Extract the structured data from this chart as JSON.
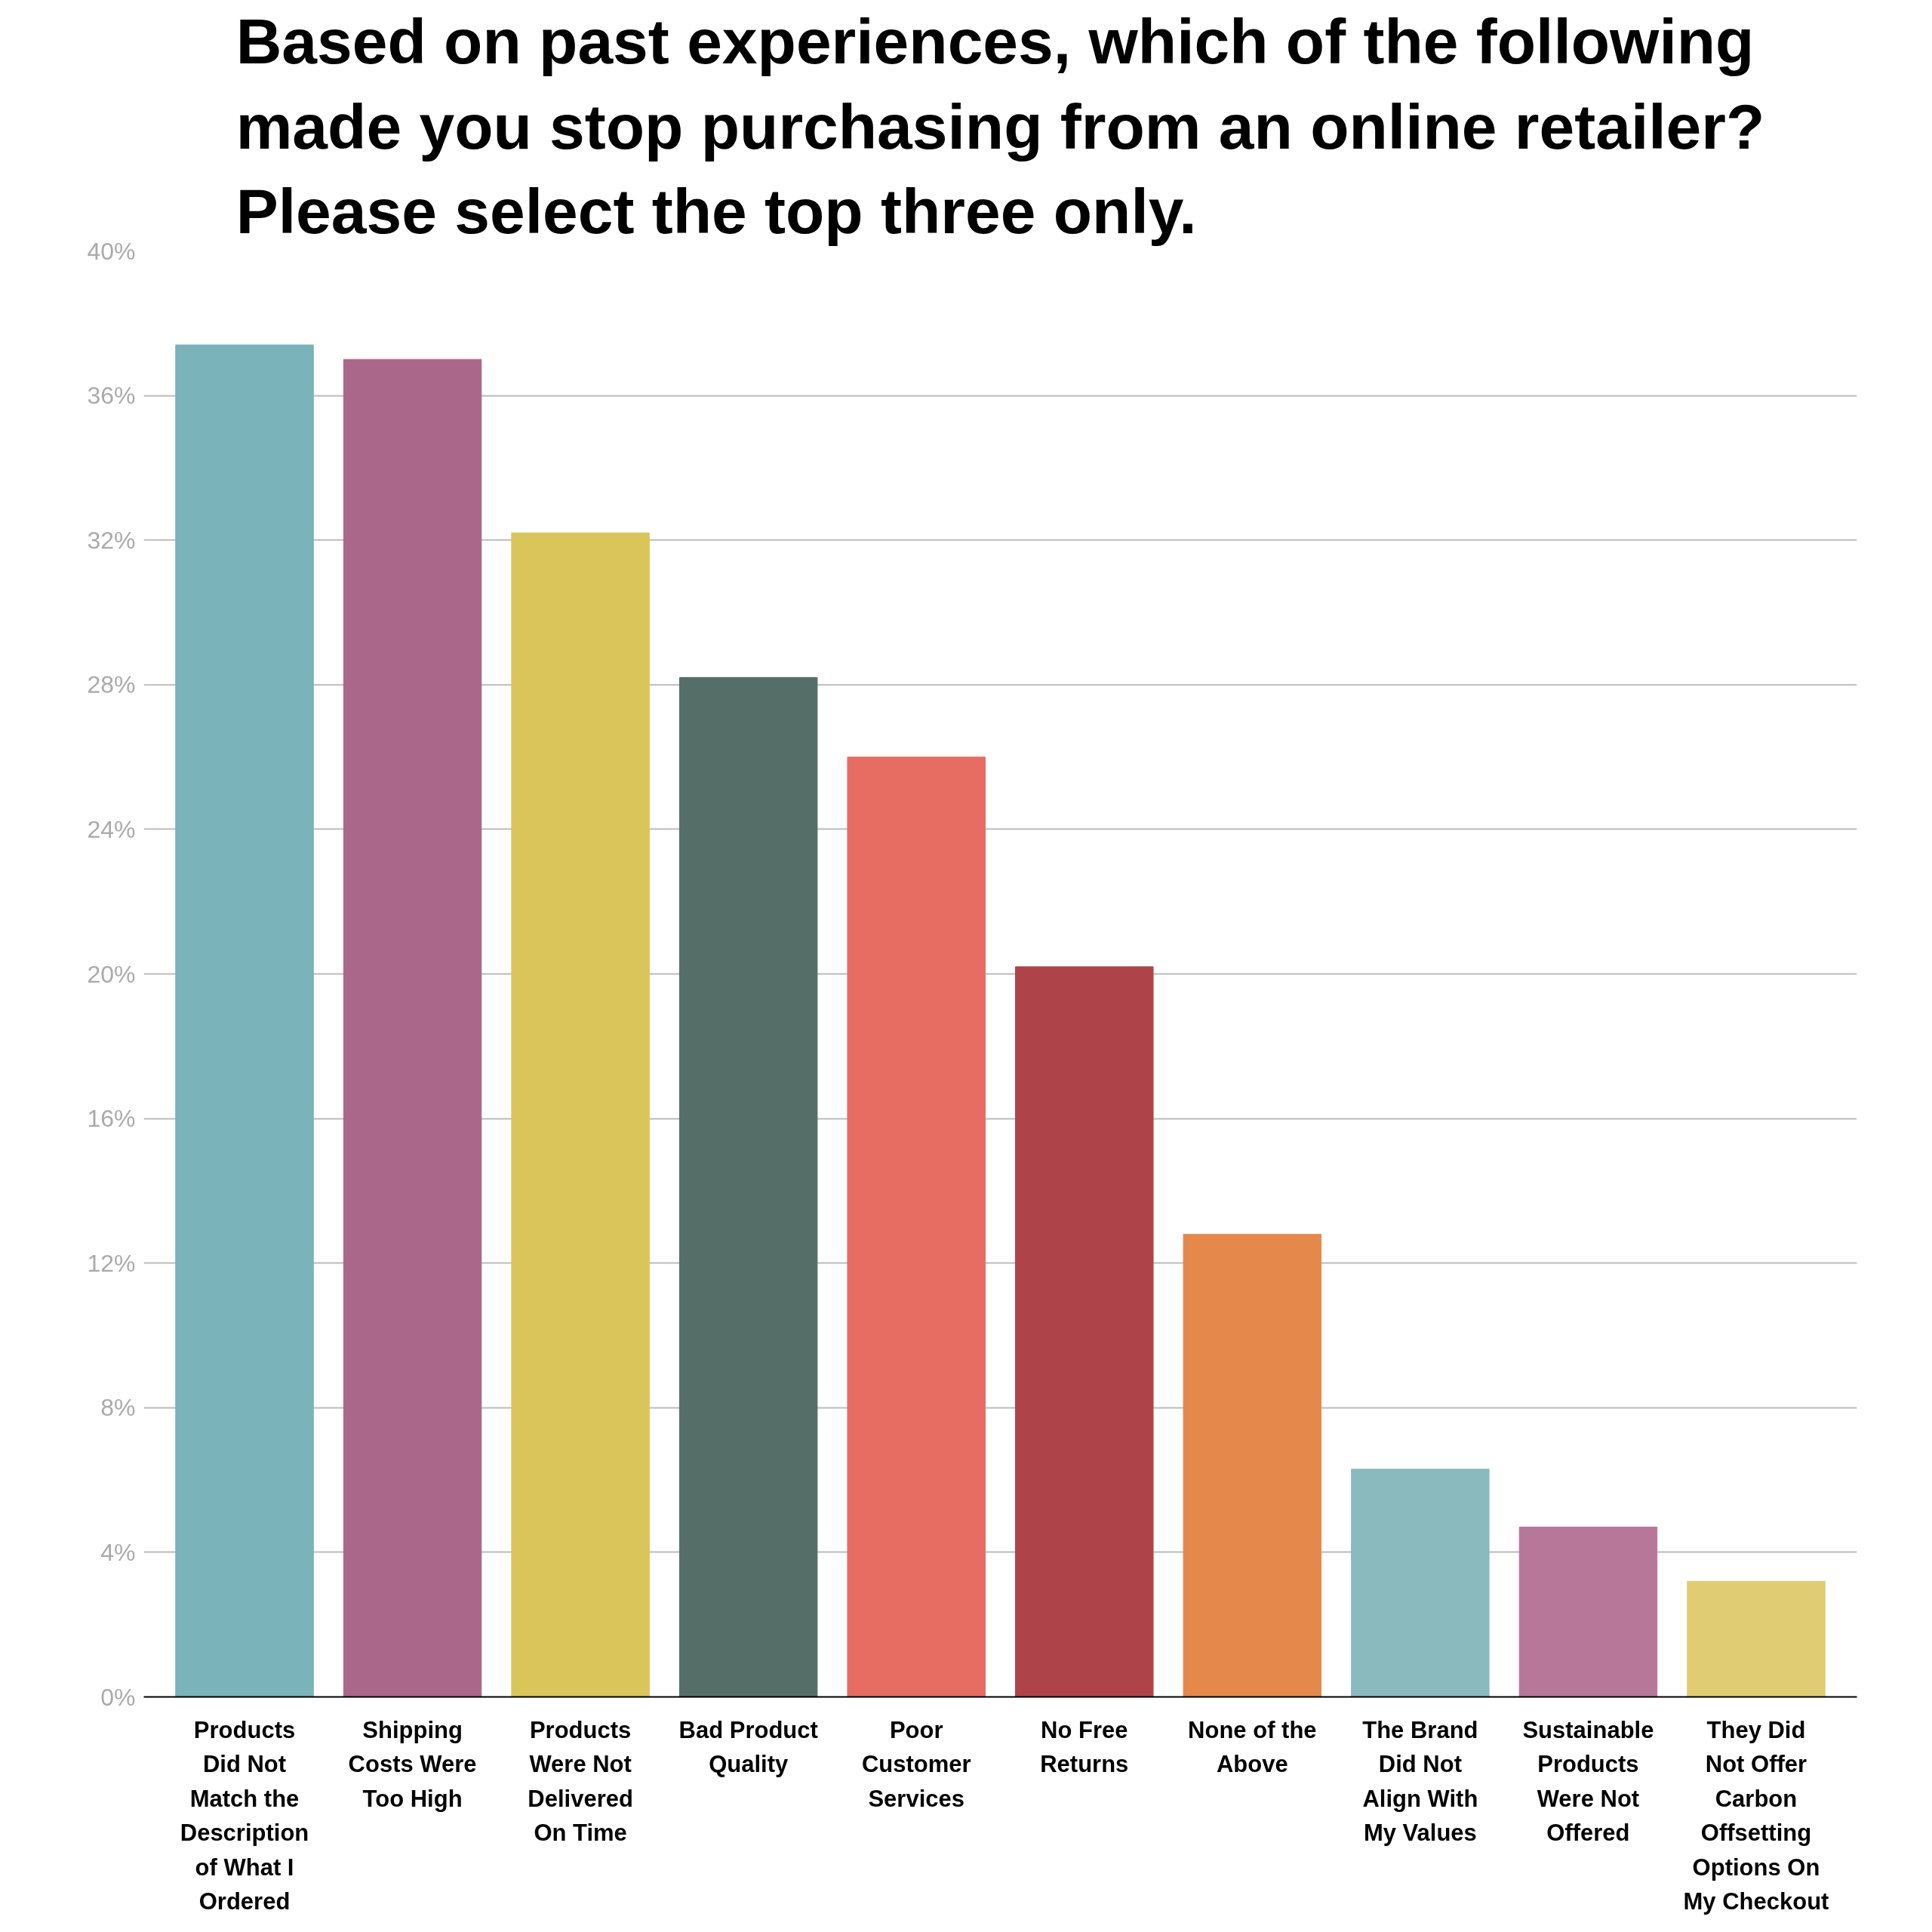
{
  "chart_data": {
    "type": "bar",
    "title": "Based on past experiences, which of the following made you stop purchasing from an online retailer?  Please select the top three only.",
    "categories": [
      "Products Did Not Match the Description of What I Ordered",
      "Shipping Costs Were Too High",
      "Products Were Not Delivered On Time",
      "Bad Product Quality",
      "Poor Customer Services",
      "No Free Returns",
      "None of the Above",
      "The Brand Did Not Align With My Values",
      "Sustainable Products Were Not Offered",
      "They Did Not Offer Carbon Offsetting Options On My Checkout"
    ],
    "values": [
      37.4,
      37.0,
      32.2,
      28.2,
      26.0,
      20.2,
      12.8,
      6.3,
      4.7,
      3.2
    ],
    "colors": [
      "#7ab3ba",
      "#ab6789",
      "#dac55b",
      "#556f68",
      "#e76c62",
      "#ae4449",
      "#e4894b",
      "#8bbabe",
      "#b77799",
      "#e0cc72"
    ],
    "ylim": [
      0,
      40
    ],
    "yticks": [
      {
        "value": 0,
        "label": "0%"
      },
      {
        "value": 4,
        "label": "4%"
      },
      {
        "value": 8,
        "label": "8%"
      },
      {
        "value": 12,
        "label": "12%"
      },
      {
        "value": 16,
        "label": "16%"
      },
      {
        "value": 20,
        "label": "20%"
      },
      {
        "value": 24,
        "label": "24%"
      },
      {
        "value": 28,
        "label": "28%"
      },
      {
        "value": 32,
        "label": "32%"
      },
      {
        "value": 36,
        "label": "36%"
      },
      {
        "value": 40,
        "label": "40%"
      }
    ],
    "grid": "y"
  }
}
